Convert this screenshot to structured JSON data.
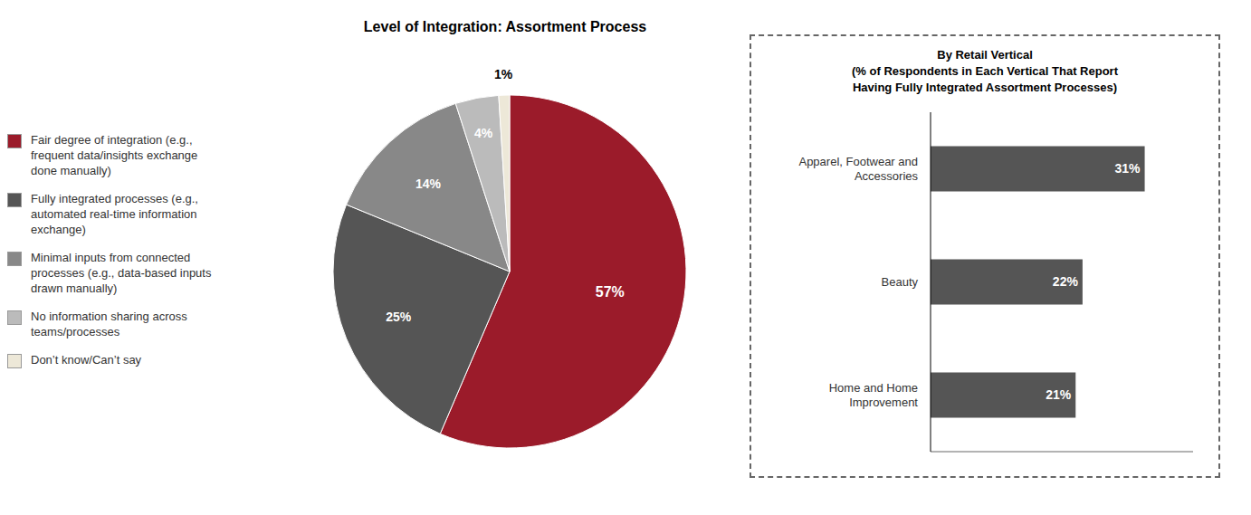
{
  "chart_data": [
    {
      "type": "pie",
      "title": "Level of Integration: Assortment Process",
      "categories": [
        "Fair degree of integration (e.g.,\nfrequent data/insights exchange\ndone manually)",
        "Fully integrated processes (e.g.,\nautomated real-time information\nexchange)",
        "Minimal inputs from connected\nprocesses (e.g., data-based inputs\ndrawn manually)",
        "No information sharing across\nteams/processes",
        "Don’t know/Can’t say"
      ],
      "values": [
        57,
        25,
        14,
        4,
        1
      ],
      "value_labels": [
        "57%",
        "25%",
        "14%",
        "4%",
        "1%"
      ],
      "colors": [
        "#9B1B2A",
        "#555555",
        "#888888",
        "#BBBBBB",
        "#EDE8D8"
      ],
      "data_labels": true,
      "legend": "left"
    },
    {
      "type": "bar",
      "orientation": "horizontal",
      "title": "By Retail Vertical\n(% of Respondents in Each Vertical That Report\nHaving Fully Integrated Assortment Processes)",
      "categories": [
        "Apparel, Footwear and\nAccessories",
        "Beauty",
        "Home and Home\nImprovement"
      ],
      "values": [
        31,
        22,
        21
      ],
      "value_labels": [
        "31%",
        "22%",
        "21%"
      ],
      "color": "#555555",
      "xlim": [
        0,
        38
      ],
      "tick_labels": "y",
      "data_labels": true
    }
  ]
}
